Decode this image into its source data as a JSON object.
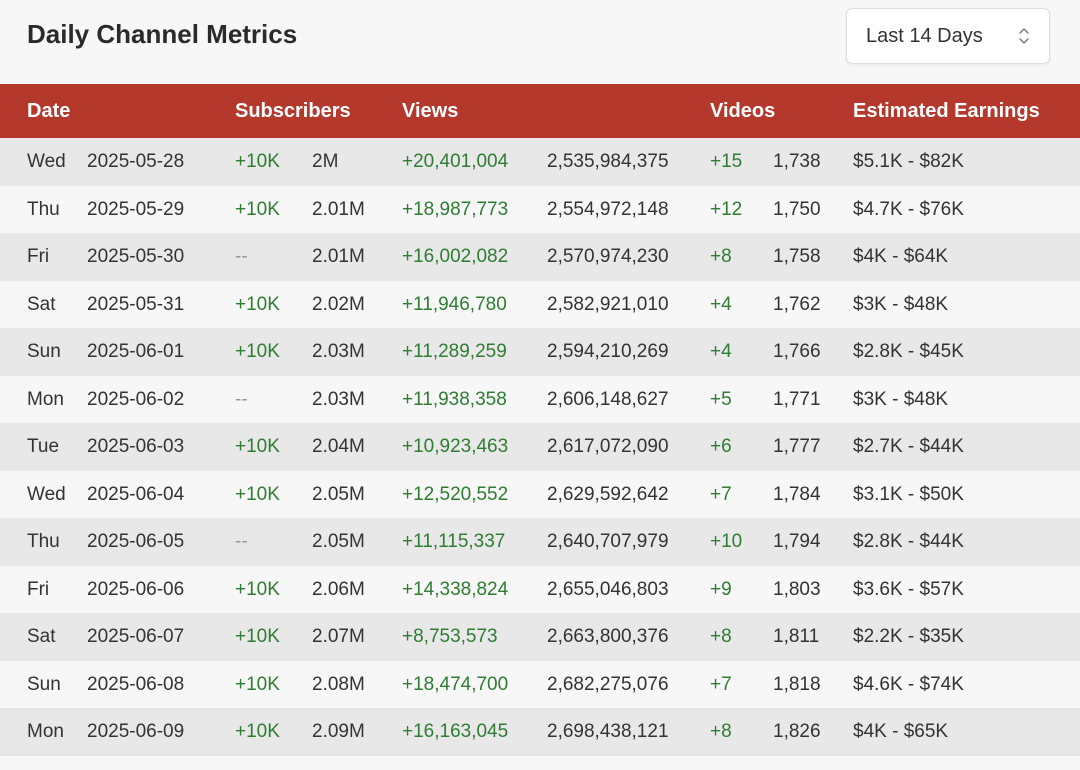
{
  "header": {
    "title": "Daily Channel Metrics",
    "range_select": {
      "selected": "Last 14 Days",
      "icon": "chevron-updown-icon"
    }
  },
  "table": {
    "columns": [
      "Date",
      "Subscribers",
      "Views",
      "Videos",
      "Estimated Earnings"
    ],
    "rows": [
      {
        "day": "Wed",
        "date": "2025-05-28",
        "subs_delta": "+10K",
        "subs_total": "2M",
        "views_delta": "+20,401,004",
        "views_total": "2,535,984,375",
        "videos_delta": "+15",
        "videos_total": "1,738",
        "earnings": "$5.1K - $82K"
      },
      {
        "day": "Thu",
        "date": "2025-05-29",
        "subs_delta": "+10K",
        "subs_total": "2.01M",
        "views_delta": "+18,987,773",
        "views_total": "2,554,972,148",
        "videos_delta": "+12",
        "videos_total": "1,750",
        "earnings": "$4.7K - $76K"
      },
      {
        "day": "Fri",
        "date": "2025-05-30",
        "subs_delta": "--",
        "subs_total": "2.01M",
        "views_delta": "+16,002,082",
        "views_total": "2,570,974,230",
        "videos_delta": "+8",
        "videos_total": "1,758",
        "earnings": "$4K - $64K"
      },
      {
        "day": "Sat",
        "date": "2025-05-31",
        "subs_delta": "+10K",
        "subs_total": "2.02M",
        "views_delta": "+11,946,780",
        "views_total": "2,582,921,010",
        "videos_delta": "+4",
        "videos_total": "1,762",
        "earnings": "$3K - $48K"
      },
      {
        "day": "Sun",
        "date": "2025-06-01",
        "subs_delta": "+10K",
        "subs_total": "2.03M",
        "views_delta": "+11,289,259",
        "views_total": "2,594,210,269",
        "videos_delta": "+4",
        "videos_total": "1,766",
        "earnings": "$2.8K - $45K"
      },
      {
        "day": "Mon",
        "date": "2025-06-02",
        "subs_delta": "--",
        "subs_total": "2.03M",
        "views_delta": "+11,938,358",
        "views_total": "2,606,148,627",
        "videos_delta": "+5",
        "videos_total": "1,771",
        "earnings": "$3K - $48K"
      },
      {
        "day": "Tue",
        "date": "2025-06-03",
        "subs_delta": "+10K",
        "subs_total": "2.04M",
        "views_delta": "+10,923,463",
        "views_total": "2,617,072,090",
        "videos_delta": "+6",
        "videos_total": "1,777",
        "earnings": "$2.7K - $44K"
      },
      {
        "day": "Wed",
        "date": "2025-06-04",
        "subs_delta": "+10K",
        "subs_total": "2.05M",
        "views_delta": "+12,520,552",
        "views_total": "2,629,592,642",
        "videos_delta": "+7",
        "videos_total": "1,784",
        "earnings": "$3.1K - $50K"
      },
      {
        "day": "Thu",
        "date": "2025-06-05",
        "subs_delta": "--",
        "subs_total": "2.05M",
        "views_delta": "+11,115,337",
        "views_total": "2,640,707,979",
        "videos_delta": "+10",
        "videos_total": "1,794",
        "earnings": "$2.8K - $44K"
      },
      {
        "day": "Fri",
        "date": "2025-06-06",
        "subs_delta": "+10K",
        "subs_total": "2.06M",
        "views_delta": "+14,338,824",
        "views_total": "2,655,046,803",
        "videos_delta": "+9",
        "videos_total": "1,803",
        "earnings": "$3.6K - $57K"
      },
      {
        "day": "Sat",
        "date": "2025-06-07",
        "subs_delta": "+10K",
        "subs_total": "2.07M",
        "views_delta": "+8,753,573",
        "views_total": "2,663,800,376",
        "videos_delta": "+8",
        "videos_total": "1,811",
        "earnings": "$2.2K - $35K"
      },
      {
        "day": "Sun",
        "date": "2025-06-08",
        "subs_delta": "+10K",
        "subs_total": "2.08M",
        "views_delta": "+18,474,700",
        "views_total": "2,682,275,076",
        "videos_delta": "+7",
        "videos_total": "1,818",
        "earnings": "$4.6K - $74K"
      },
      {
        "day": "Mon",
        "date": "2025-06-09",
        "subs_delta": "+10K",
        "subs_total": "2.09M",
        "views_delta": "+16,163,045",
        "views_total": "2,698,438,121",
        "videos_delta": "+8",
        "videos_total": "1,826",
        "earnings": "$4K - $65K"
      }
    ]
  },
  "colors": {
    "header_bg": "#b5382c",
    "positive": "#2e7d32",
    "muted": "#9a9a9a",
    "row_alt": "#e8e8e8"
  }
}
